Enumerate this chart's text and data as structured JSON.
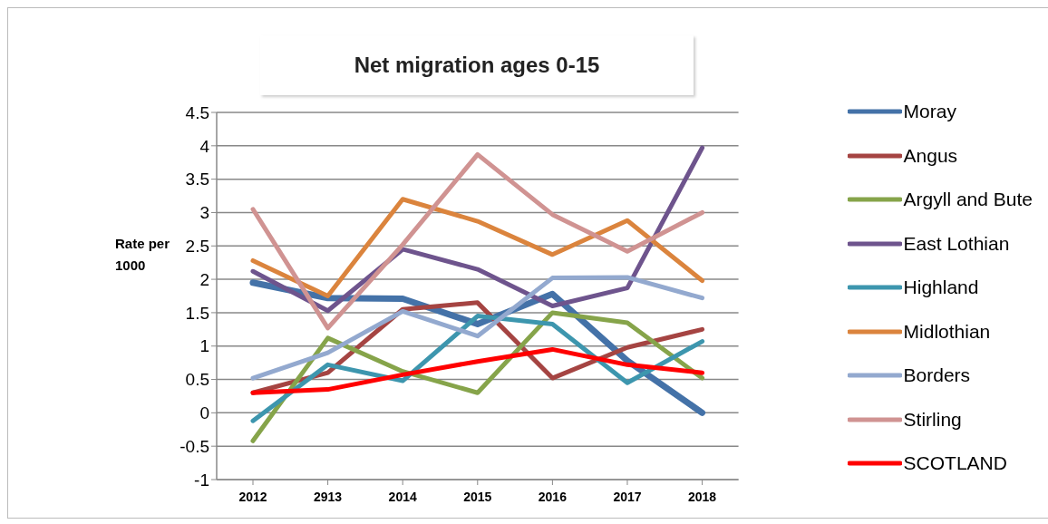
{
  "chart_data": {
    "type": "line",
    "title": "Net migration ages 0-15",
    "ylabel": "Rate per 1000",
    "categories": [
      "2012",
      "2913",
      "2014",
      "2015",
      "2016",
      "2017",
      "2018"
    ],
    "series": [
      {
        "name": "Moray",
        "color": "#4472a8",
        "values": [
          1.95,
          1.72,
          1.71,
          1.33,
          1.78,
          0.78,
          0.0
        ]
      },
      {
        "name": "Angus",
        "color": "#a54442",
        "values": [
          0.3,
          0.6,
          1.55,
          1.65,
          0.52,
          0.98,
          1.25
        ]
      },
      {
        "name": "Argyll and Bute",
        "color": "#86a44a",
        "values": [
          -0.42,
          1.12,
          0.62,
          0.3,
          1.5,
          1.35,
          0.52
        ]
      },
      {
        "name": "East Lothian",
        "color": "#6e548d",
        "values": [
          2.12,
          1.53,
          2.45,
          2.15,
          1.6,
          1.87,
          3.97
        ]
      },
      {
        "name": "Highland",
        "color": "#3d96ae",
        "values": [
          -0.12,
          0.72,
          0.48,
          1.45,
          1.33,
          0.45,
          1.07
        ]
      },
      {
        "name": "Midlothian",
        "color": "#db843d",
        "values": [
          2.28,
          1.75,
          3.2,
          2.87,
          2.37,
          2.88,
          1.98
        ]
      },
      {
        "name": "Borders",
        "color": "#93a9cf",
        "values": [
          0.52,
          0.9,
          1.52,
          1.15,
          2.02,
          2.03,
          1.72
        ]
      },
      {
        "name": "Stirling",
        "color": "#d09392",
        "values": [
          3.05,
          1.27,
          2.52,
          3.87,
          2.97,
          2.42,
          3.0
        ]
      },
      {
        "name": "SCOTLAND",
        "color": "#ff0000",
        "values": [
          0.3,
          0.35,
          0.57,
          0.77,
          0.95,
          0.72,
          0.6
        ]
      }
    ],
    "ylim": [
      -1,
      4.5
    ],
    "yticks": [
      -1,
      -0.5,
      0,
      0.5,
      1,
      1.5,
      2,
      2.5,
      3,
      3.5,
      4,
      4.5
    ],
    "grid": "y",
    "legend": "right",
    "marker": "none",
    "line_style": "solid"
  }
}
